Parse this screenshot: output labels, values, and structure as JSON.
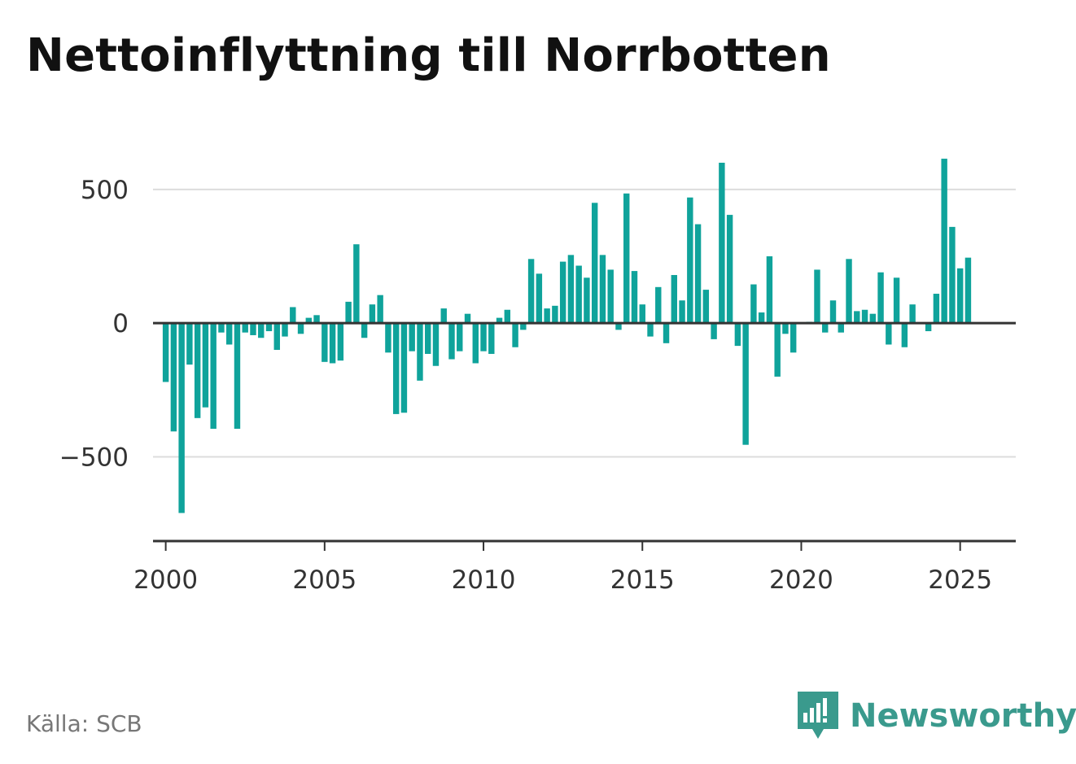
{
  "title": "Nettoinflyttning till Norrbotten",
  "source": "Källa: SCB",
  "brand": {
    "name": "Newsworthy",
    "icon": "newsworthy-logo-icon",
    "color": "#3a9a8d"
  },
  "colors": {
    "bars": "#0fa39b",
    "grid": "#dcdcdc",
    "axis": "#333333"
  },
  "chart_data": {
    "type": "bar",
    "title": "Nettoinflyttning till Norrbotten",
    "xlabel": "",
    "ylabel": "",
    "x_start": 2000,
    "x_step": 0.25,
    "xlim": [
      1999.6,
      2026.75
    ],
    "ylim": [
      -815,
      600
    ],
    "x_ticks": [
      2000,
      2005,
      2010,
      2015,
      2020,
      2025
    ],
    "y_ticks": [
      -500,
      0,
      500
    ],
    "y_tick_labels": [
      "−500",
      "0",
      "500"
    ],
    "grid": true,
    "values": [
      -220,
      -405,
      -710,
      -155,
      -355,
      -315,
      -395,
      -35,
      -80,
      -395,
      -35,
      -45,
      -55,
      -30,
      -100,
      -50,
      60,
      -40,
      20,
      30,
      -145,
      -150,
      -140,
      80,
      295,
      -55,
      70,
      105,
      -110,
      -340,
      -335,
      -105,
      -215,
      -115,
      -160,
      55,
      -135,
      -105,
      35,
      -150,
      -105,
      -115,
      20,
      50,
      -90,
      -25,
      240,
      185,
      55,
      65,
      230,
      255,
      215,
      170,
      450,
      255,
      200,
      -25,
      485,
      195,
      70,
      -50,
      135,
      -75,
      180,
      85,
      470,
      370,
      125,
      -60,
      600,
      405,
      -85,
      -455,
      145,
      40,
      250,
      -200,
      -40,
      -110,
      0,
      5,
      200,
      -35,
      85,
      -35,
      240,
      45,
      50,
      35,
      190,
      -80,
      170,
      -90,
      70,
      0,
      -30,
      110,
      615,
      360,
      205,
      245
    ]
  }
}
